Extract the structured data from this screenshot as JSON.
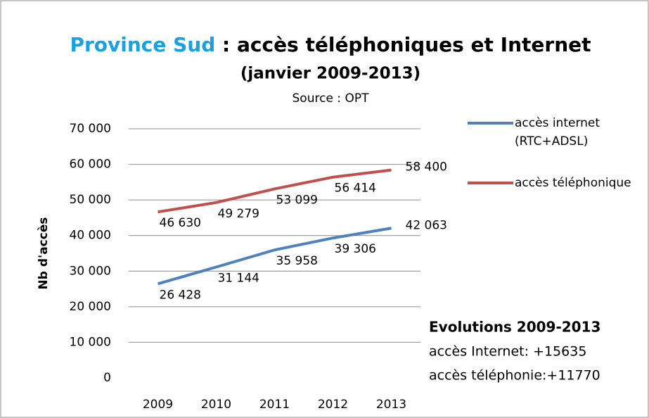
{
  "chart_data": {
    "type": "line",
    "title": [
      "Province Sud",
      ": accès téléphoniques et Internet"
    ],
    "subtitle": "(janvier 2009-2013)",
    "source": "Source : OPT",
    "y_label": "Nb d'accès",
    "categories": [
      "2009",
      "2010",
      "2011",
      "2012",
      "2013"
    ],
    "series": [
      {
        "name": " accès internet (RTC+ADSL)",
        "color": "#4f81bd",
        "values": [
          26428,
          31144,
          35958,
          39306,
          42063
        ],
        "value_labels": [
          "26 428",
          "31 144",
          "35 958",
          "39 306",
          "42 063"
        ]
      },
      {
        "name": "accès téléphonique",
        "color": "#c0504d",
        "values": [
          46630,
          49279,
          53099,
          56414,
          58400
        ],
        "value_labels": [
          "46 630",
          "49 279",
          "53 099",
          "56 414",
          "58 400"
        ]
      }
    ],
    "ylim": [
      0,
      70000
    ],
    "yticks": [
      {
        "value": 0,
        "label": "0"
      },
      {
        "value": 10000,
        "label": "10 000"
      },
      {
        "value": 20000,
        "label": "20 000"
      },
      {
        "value": 30000,
        "label": "30 000"
      },
      {
        "value": 40000,
        "label": "40 000"
      },
      {
        "value": 50000,
        "label": "50 000"
      },
      {
        "value": 60000,
        "label": "60 000"
      },
      {
        "value": 70000,
        "label": "70 000"
      }
    ],
    "grid": true,
    "legend": "right",
    "annotations": [
      "Evolutions 2009-2013",
      "accès Internet: +15635",
      "accès téléphonie:+11770"
    ]
  }
}
